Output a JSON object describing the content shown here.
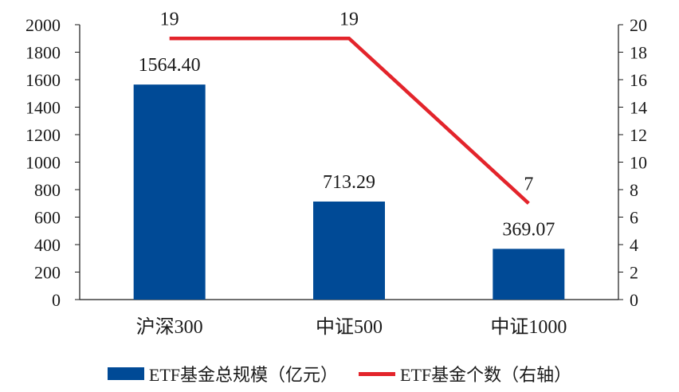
{
  "chart_data": {
    "type": "bar+line",
    "categories": [
      "沪深300",
      "中证500",
      "中证1000"
    ],
    "series": [
      {
        "name": "ETF基金总规模（亿元）",
        "type": "bar",
        "axis": "left",
        "values": [
          1564.4,
          713.29,
          369.07
        ],
        "labels": [
          "1564.40",
          "713.29",
          "369.07"
        ],
        "color": "#004a96"
      },
      {
        "name": "ETF基金个数（右轴）",
        "type": "line",
        "axis": "right",
        "values": [
          19,
          19,
          7
        ],
        "labels": [
          "19",
          "19",
          "7"
        ],
        "color": "#e3242b"
      }
    ],
    "y_left": {
      "min": 0,
      "max": 2000,
      "step": 200
    },
    "y_right": {
      "min": 0,
      "max": 20,
      "step": 2
    },
    "grid": false,
    "legend_position": "bottom"
  }
}
